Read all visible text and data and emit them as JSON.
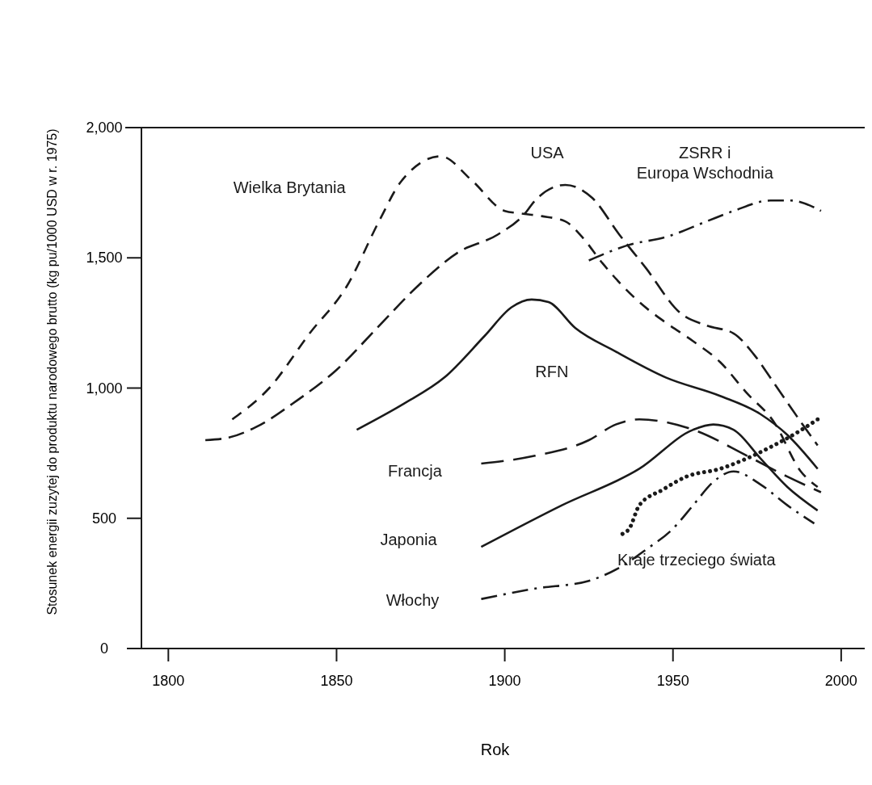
{
  "chart_data": {
    "type": "line",
    "xlabel": "Rok",
    "ylabel": "Stosunek energii zuzytej do produktu narodowego brutto (kg pu/1000 USD w r. 1975)",
    "xlim": [
      1792,
      2007
    ],
    "ylim": [
      0,
      2000
    ],
    "xticks": [
      1800,
      1850,
      1900,
      1950,
      2000
    ],
    "yticks": [
      {
        "value": 0,
        "label": "0"
      },
      {
        "value": 500,
        "label": "500"
      },
      {
        "value": 1000,
        "label": "1,000"
      },
      {
        "value": 1500,
        "label": "1,500"
      },
      {
        "value": 2000,
        "label": "2,000"
      }
    ],
    "series": [
      {
        "name": "Wielka Brytania",
        "color": "#1a1a1a",
        "line_style": "dashed",
        "x": [
          1819,
          1830,
          1842,
          1853,
          1863,
          1869,
          1881,
          1890,
          1900,
          1905,
          1911,
          1918,
          1923,
          1929,
          1940,
          1948,
          1956,
          1964,
          1972,
          1980,
          1988,
          1993
        ],
        "values": [
          880,
          1000,
          1210,
          1390,
          1650,
          1790,
          1890,
          1800,
          1680,
          1670,
          1660,
          1640,
          1580,
          1480,
          1330,
          1250,
          1180,
          1100,
          980,
          870,
          680,
          620
        ]
      },
      {
        "name": "USA",
        "color": "#1a1a1a",
        "line_style": "dashed",
        "x": [
          1811,
          1818,
          1826,
          1838,
          1850,
          1862,
          1874,
          1886,
          1898,
          1906,
          1909,
          1918,
          1926,
          1934,
          1942,
          1952,
          1960,
          1968,
          1974,
          1980,
          1988,
          1993
        ],
        "values": [
          800,
          810,
          850,
          950,
          1070,
          1230,
          1390,
          1520,
          1590,
          1670,
          1720,
          1780,
          1730,
          1590,
          1460,
          1290,
          1240,
          1210,
          1130,
          1020,
          870,
          780
        ]
      },
      {
        "name": "ZSRR i\nEuropa Wschodnia",
        "color": "#1a1a1a",
        "line_style": "dashdot",
        "x": [
          1925,
          1937,
          1948,
          1960,
          1968,
          1979,
          1985,
          1994
        ],
        "values": [
          1490,
          1550,
          1580,
          1640,
          1680,
          1720,
          1720,
          1680
        ]
      },
      {
        "name": "RFN",
        "color": "#1a1a1a",
        "line_style": "solid",
        "x": [
          1856,
          1870,
          1882,
          1894,
          1902,
          1908,
          1913,
          1921,
          1933,
          1948,
          1964,
          1976,
          1984,
          1993
        ],
        "values": [
          840,
          940,
          1040,
          1200,
          1310,
          1340,
          1330,
          1230,
          1140,
          1040,
          970,
          900,
          820,
          690
        ]
      },
      {
        "name": "Francja",
        "color": "#1a1a1a",
        "line_style": "dashed",
        "x": [
          1893,
          1909,
          1925,
          1933,
          1940,
          1956,
          1972,
          1984,
          1994
        ],
        "values": [
          710,
          740,
          800,
          860,
          880,
          840,
          740,
          660,
          600
        ]
      },
      {
        "name": "Japonia",
        "color": "#1a1a1a",
        "line_style": "solid",
        "x": [
          1893,
          1917,
          1940,
          1956,
          1962,
          1968,
          1976,
          1984,
          1993
        ],
        "values": [
          390,
          550,
          690,
          840,
          860,
          840,
          730,
          620,
          530
        ]
      },
      {
        "name": "Włochy",
        "color": "#1a1a1a",
        "line_style": "dashdot",
        "x": [
          1893,
          1909,
          1925,
          1934,
          1942,
          1950,
          1956,
          1962,
          1968,
          1976,
          1984,
          1992
        ],
        "values": [
          190,
          230,
          260,
          310,
          380,
          460,
          550,
          640,
          680,
          630,
          550,
          480
        ]
      },
      {
        "name": "Kraje trzeciego świata",
        "color": "#1a1a1a",
        "line_style": "dotted",
        "x": [
          1935,
          1937,
          1940,
          1947,
          1954,
          1964,
          1972,
          1980,
          1987,
          1993
        ],
        "values": [
          440,
          460,
          550,
          610,
          660,
          690,
          730,
          780,
          830,
          880
        ]
      }
    ]
  }
}
